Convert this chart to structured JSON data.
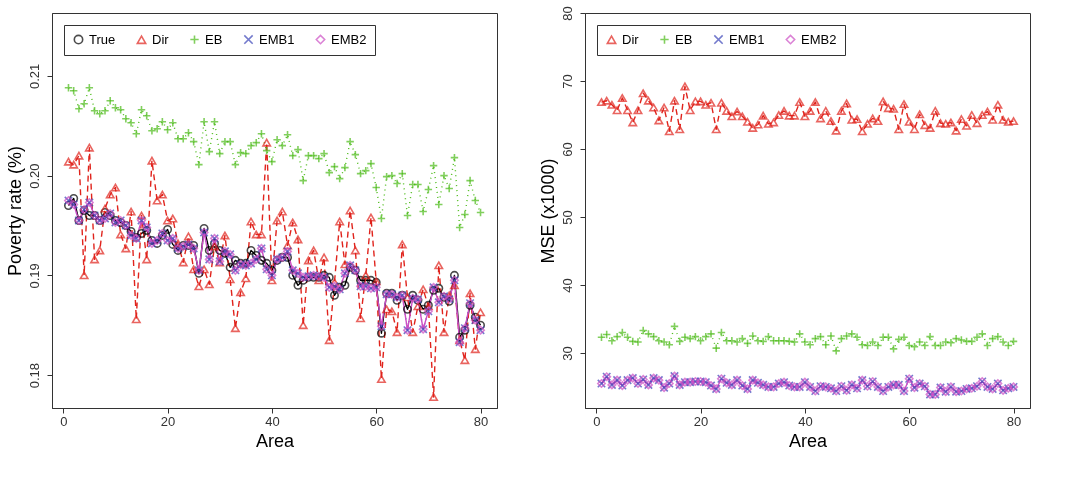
{
  "chart_data": [
    {
      "type": "line",
      "xlabel": "Area",
      "ylabel": "Poverty rate (%)",
      "legend": "top left",
      "grid": false,
      "xlim": [
        -2.16,
        83.16
      ],
      "xticks": [
        0,
        20,
        40,
        60,
        80
      ],
      "ylim": [
        0.1767,
        0.2163
      ],
      "yticks": [
        {
          "value": 0.18,
          "label": "0.18"
        },
        {
          "value": 0.19,
          "label": "0.19"
        },
        {
          "value": 0.2,
          "label": "0.20"
        },
        {
          "value": 0.21,
          "label": "0.21"
        }
      ],
      "x": [
        1,
        2,
        3,
        4,
        5,
        6,
        7,
        8,
        9,
        10,
        11,
        12,
        13,
        14,
        15,
        16,
        17,
        18,
        19,
        20,
        21,
        22,
        23,
        24,
        25,
        26,
        27,
        28,
        29,
        30,
        31,
        32,
        33,
        34,
        35,
        36,
        37,
        38,
        39,
        40,
        41,
        42,
        43,
        44,
        45,
        46,
        47,
        48,
        49,
        50,
        51,
        52,
        53,
        54,
        55,
        56,
        57,
        58,
        59,
        60,
        61,
        62,
        63,
        64,
        65,
        66,
        67,
        68,
        69,
        70,
        71,
        72,
        73,
        74,
        75,
        76,
        77,
        78,
        79,
        80
      ],
      "series": [
        {
          "name": "True",
          "color": "#000000",
          "marker": "circle",
          "line_style": "solid",
          "values": [
            0.197,
            0.1977,
            0.1955,
            0.1965,
            0.196,
            0.196,
            0.1955,
            0.1963,
            0.196,
            0.1955,
            0.1953,
            0.195,
            0.1944,
            0.1938,
            0.1942,
            0.1945,
            0.1935,
            0.1932,
            0.194,
            0.1946,
            0.1931,
            0.1925,
            0.193,
            0.193,
            0.193,
            0.1902,
            0.1947,
            0.1925,
            0.1932,
            0.1925,
            0.1922,
            0.1908,
            0.1915,
            0.1912,
            0.1912,
            0.1925,
            0.192,
            0.1915,
            0.1912,
            0.1905,
            0.1915,
            0.1918,
            0.1918,
            0.19,
            0.189,
            0.1895,
            0.1898,
            0.1898,
            0.1898,
            0.19,
            0.1898,
            0.188,
            0.1888,
            0.189,
            0.1908,
            0.1905,
            0.1895,
            0.1895,
            0.1895,
            0.1893,
            0.1842,
            0.1882,
            0.1882,
            0.1875,
            0.188,
            0.1866,
            0.188,
            0.1875,
            0.1866,
            0.187,
            0.1885,
            0.1887,
            0.1878,
            0.1874,
            0.19,
            0.1838,
            0.1845,
            0.187,
            0.1858,
            0.185
          ]
        },
        {
          "name": "Dir",
          "color": "#e0231c",
          "marker": "triangle",
          "line_style": "dashed",
          "values": [
            0.2014,
            0.2011,
            0.202,
            0.19,
            0.2028,
            0.1916,
            0.1925,
            0.1967,
            0.1981,
            0.1988,
            0.1941,
            0.1927,
            0.1964,
            0.1856,
            0.196,
            0.1916,
            0.2015,
            0.1975,
            0.1981,
            0.1955,
            0.1957,
            0.1932,
            0.1913,
            0.1939,
            0.1906,
            0.1889,
            0.1906,
            0.1891,
            0.1929,
            0.1913,
            0.194,
            0.1896,
            0.1847,
            0.1883,
            0.1897,
            0.1954,
            0.1941,
            0.1941,
            0.2033,
            0.1895,
            0.1955,
            0.1964,
            0.193,
            0.1953,
            0.1936,
            0.185,
            0.1915,
            0.1925,
            0.1895,
            0.1918,
            0.1835,
            0.1893,
            0.1954,
            0.1911,
            0.1965,
            0.1925,
            0.1857,
            0.19,
            0.1958,
            0.1894,
            0.1796,
            0.1866,
            0.1864,
            0.1843,
            0.1931,
            0.1878,
            0.1843,
            0.1869,
            0.1886,
            0.1869,
            0.1778,
            0.191,
            0.1843,
            0.188,
            0.189,
            0.1835,
            0.1815,
            0.1882,
            0.1826,
            0.1863
          ]
        },
        {
          "name": "EB",
          "color": "#4dbb1a",
          "marker": "cross",
          "line_style": "dotted",
          "values": [
            0.2088,
            0.2085,
            0.2067,
            0.2072,
            0.2088,
            0.2065,
            0.2062,
            0.2065,
            0.2075,
            0.2068,
            0.2066,
            0.2057,
            0.2053,
            0.2042,
            0.2066,
            0.206,
            0.2045,
            0.2047,
            0.2054,
            0.2046,
            0.2053,
            0.2037,
            0.2037,
            0.2043,
            0.2034,
            0.2011,
            0.2054,
            0.2024,
            0.2054,
            0.2022,
            0.2034,
            0.2034,
            0.2011,
            0.2023,
            0.2022,
            0.203,
            0.2033,
            0.2042,
            0.2025,
            0.2014,
            0.2036,
            0.203,
            0.2041,
            0.202,
            0.2026,
            0.1995,
            0.202,
            0.202,
            0.2017,
            0.2022,
            0.2003,
            0.2009,
            0.1997,
            0.2008,
            0.2034,
            0.2021,
            0.2002,
            0.2005,
            0.2012,
            0.1988,
            0.1957,
            0.1999,
            0.2,
            0.1992,
            0.2002,
            0.196,
            0.1991,
            0.1991,
            0.1964,
            0.1986,
            0.201,
            0.1971,
            0.2,
            0.1987,
            0.2018,
            0.1948,
            0.1961,
            0.1995,
            0.1975,
            0.1963
          ]
        },
        {
          "name": "EMB1",
          "color": "#3a44b8",
          "marker": "x",
          "line_style": "dotted",
          "values": [
            0.1975,
            0.1971,
            0.1955,
            0.1966,
            0.1973,
            0.196,
            0.1955,
            0.1957,
            0.1962,
            0.1953,
            0.1955,
            0.195,
            0.194,
            0.1937,
            0.1955,
            0.1948,
            0.1932,
            0.1935,
            0.1942,
            0.1935,
            0.1937,
            0.1927,
            0.1929,
            0.1931,
            0.1927,
            0.1905,
            0.1943,
            0.1916,
            0.1937,
            0.1914,
            0.1924,
            0.1921,
            0.1905,
            0.1911,
            0.191,
            0.1912,
            0.1916,
            0.1927,
            0.1906,
            0.19,
            0.1916,
            0.1918,
            0.1924,
            0.1905,
            0.1902,
            0.1898,
            0.1899,
            0.19,
            0.1899,
            0.1898,
            0.1888,
            0.1889,
            0.1886,
            0.1902,
            0.191,
            0.1905,
            0.1889,
            0.1889,
            0.1887,
            0.1888,
            0.1849,
            0.1881,
            0.1881,
            0.1878,
            0.188,
            0.1845,
            0.1877,
            0.1876,
            0.1846,
            0.1864,
            0.1888,
            0.1873,
            0.1879,
            0.1876,
            0.1895,
            0.1833,
            0.1847,
            0.1872,
            0.1855,
            0.1845
          ]
        },
        {
          "name": "EMB2",
          "color": "#cc4ec4",
          "marker": "diamond",
          "line_style": "solid",
          "values": [
            0.1975,
            0.1971,
            0.1955,
            0.1966,
            0.1973,
            0.196,
            0.1955,
            0.1957,
            0.1962,
            0.1953,
            0.1955,
            0.195,
            0.194,
            0.1937,
            0.1955,
            0.1948,
            0.1932,
            0.1935,
            0.1942,
            0.1935,
            0.1937,
            0.1927,
            0.1929,
            0.1931,
            0.1927,
            0.1905,
            0.1943,
            0.1916,
            0.1937,
            0.1914,
            0.1924,
            0.1921,
            0.1905,
            0.1911,
            0.191,
            0.1912,
            0.1916,
            0.1927,
            0.1906,
            0.19,
            0.1916,
            0.1918,
            0.1924,
            0.1905,
            0.1902,
            0.1898,
            0.1899,
            0.19,
            0.1899,
            0.1898,
            0.1888,
            0.1889,
            0.1886,
            0.1902,
            0.191,
            0.1905,
            0.1889,
            0.1889,
            0.1887,
            0.1888,
            0.1849,
            0.1881,
            0.1881,
            0.1878,
            0.188,
            0.1845,
            0.1877,
            0.1876,
            0.1846,
            0.1864,
            0.1888,
            0.1873,
            0.1879,
            0.1876,
            0.1895,
            0.1833,
            0.1847,
            0.1872,
            0.1855,
            0.1845
          ]
        }
      ]
    },
    {
      "type": "line",
      "xlabel": "Area",
      "ylabel": "MSE (x1000)",
      "legend": "top left",
      "grid": false,
      "xlim": [
        -2.16,
        83.16
      ],
      "xticks": [
        0,
        20,
        40,
        60,
        80
      ],
      "ylim": [
        21.9,
        80
      ],
      "yticks": [
        30,
        40,
        50,
        60,
        70,
        80
      ],
      "x": [
        1,
        2,
        3,
        4,
        5,
        6,
        7,
        8,
        9,
        10,
        11,
        12,
        13,
        14,
        15,
        16,
        17,
        18,
        19,
        20,
        21,
        22,
        23,
        24,
        25,
        26,
        27,
        28,
        29,
        30,
        31,
        32,
        33,
        34,
        35,
        36,
        37,
        38,
        39,
        40,
        41,
        42,
        43,
        44,
        45,
        46,
        47,
        48,
        49,
        50,
        51,
        52,
        53,
        54,
        55,
        56,
        57,
        58,
        59,
        60,
        61,
        62,
        63,
        64,
        65,
        66,
        67,
        68,
        69,
        70,
        71,
        72,
        73,
        74,
        75,
        76,
        77,
        78,
        79,
        80
      ],
      "series": [
        {
          "name": "Dir",
          "color": "#e0231c",
          "marker": "triangle",
          "line_style": "dashed",
          "values": [
            66.9,
            67.1,
            66.5,
            65.7,
            67.5,
            65.7,
            63.9,
            65.7,
            68.2,
            67.1,
            66.1,
            64.2,
            66.1,
            62.6,
            67.1,
            62.9,
            69.2,
            65.7,
            67.0,
            67.0,
            66.5,
            66.8,
            62.9,
            66.8,
            65.6,
            64.8,
            65.5,
            64.8,
            64.0,
            63.1,
            63.6,
            64.9,
            63.7,
            63.9,
            65.0,
            65.6,
            64.9,
            64.9,
            66.9,
            64.8,
            65.6,
            66.9,
            64.5,
            65.6,
            64.1,
            62.7,
            65.6,
            66.7,
            64.3,
            64.4,
            62.6,
            63.7,
            64.5,
            64.1,
            67.0,
            66.0,
            65.9,
            62.9,
            66.6,
            64.0,
            62.9,
            65.1,
            63.5,
            63.1,
            65.6,
            63.8,
            63.7,
            63.9,
            62.7,
            64.4,
            63.4,
            65.0,
            63.8,
            65.0,
            65.5,
            64.3,
            66.5,
            64.3,
            64.0,
            64.1
          ]
        },
        {
          "name": "EB",
          "color": "#4dbb1a",
          "marker": "cross",
          "line_style": "dotted",
          "values": [
            32.3,
            32.7,
            31.8,
            32.4,
            33.0,
            32.3,
            31.7,
            31.6,
            33.3,
            32.8,
            32.4,
            31.8,
            31.6,
            31.2,
            33.9,
            31.7,
            32.3,
            32.1,
            32.4,
            31.8,
            32.4,
            32.8,
            30.7,
            33.0,
            31.8,
            31.8,
            31.6,
            32.1,
            31.4,
            32.5,
            31.8,
            31.7,
            32.4,
            31.8,
            31.8,
            31.8,
            31.7,
            31.6,
            32.8,
            31.6,
            31.2,
            32.1,
            32.4,
            31.2,
            32.5,
            30.3,
            32.1,
            32.5,
            32.8,
            32.3,
            31.2,
            31.1,
            31.6,
            31.1,
            32.3,
            32.3,
            30.6,
            32.0,
            32.3,
            31.1,
            30.9,
            31.6,
            31.1,
            32.4,
            31.1,
            31.1,
            31.6,
            31.5,
            32.1,
            31.9,
            31.7,
            31.7,
            32.3,
            32.8,
            31.1,
            32.1,
            32.4,
            31.6,
            31.1,
            31.7
          ]
        },
        {
          "name": "EMB1",
          "color": "#3a44b8",
          "marker": "x",
          "line_style": "dotted",
          "values": [
            25.5,
            26.5,
            25.3,
            26.0,
            25.2,
            26.0,
            26.3,
            25.5,
            26.1,
            25.3,
            26.3,
            26.0,
            24.9,
            25.5,
            26.6,
            25.3,
            25.7,
            25.7,
            25.8,
            25.8,
            25.7,
            25.2,
            24.7,
            26.2,
            25.6,
            25.3,
            26.0,
            25.2,
            24.7,
            26.0,
            25.6,
            25.3,
            25.0,
            25.0,
            25.5,
            25.7,
            25.2,
            25.0,
            25.0,
            25.7,
            25.0,
            24.4,
            25.1,
            25.0,
            24.8,
            24.4,
            25.1,
            24.5,
            25.3,
            24.8,
            26.0,
            25.1,
            25.8,
            25.0,
            24.4,
            25.0,
            25.3,
            25.3,
            24.4,
            26.2,
            24.9,
            25.5,
            25.1,
            23.9,
            23.9,
            24.9,
            24.3,
            25.0,
            24.3,
            24.4,
            24.7,
            24.8,
            25.1,
            25.8,
            25.0,
            24.7,
            25.5,
            24.5,
            24.8,
            25.0
          ]
        },
        {
          "name": "EMB2",
          "color": "#cc4ec4",
          "marker": "diamond",
          "line_style": "solid",
          "values": [
            25.5,
            26.5,
            25.3,
            26.0,
            25.2,
            26.0,
            26.3,
            25.5,
            26.1,
            25.3,
            26.3,
            26.0,
            24.9,
            25.5,
            26.6,
            25.3,
            25.7,
            25.7,
            25.8,
            25.8,
            25.7,
            25.2,
            24.7,
            26.2,
            25.6,
            25.3,
            26.0,
            25.2,
            24.7,
            26.0,
            25.6,
            25.3,
            25.0,
            25.0,
            25.5,
            25.7,
            25.2,
            25.0,
            25.0,
            25.7,
            25.0,
            24.4,
            25.1,
            25.0,
            24.8,
            24.4,
            25.1,
            24.5,
            25.3,
            24.8,
            26.0,
            25.1,
            25.8,
            25.0,
            24.4,
            25.0,
            25.3,
            25.3,
            24.4,
            26.2,
            24.9,
            25.5,
            25.1,
            23.9,
            23.9,
            24.9,
            24.3,
            25.0,
            24.3,
            24.4,
            24.7,
            24.8,
            25.1,
            25.8,
            25.0,
            24.7,
            25.5,
            24.5,
            24.8,
            25.0
          ]
        }
      ]
    }
  ]
}
